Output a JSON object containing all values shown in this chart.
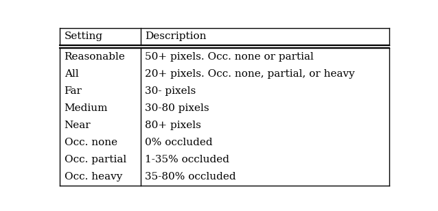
{
  "header": [
    "Setting",
    "Description"
  ],
  "rows": [
    [
      "Reasonable",
      "50+ pixels. Occ. none or partial"
    ],
    [
      "All",
      "20+ pixels. Occ. none, partial, or heavy"
    ],
    [
      "Far",
      "30- pixels"
    ],
    [
      "Medium",
      "30-80 pixels"
    ],
    [
      "Near",
      "80+ pixels"
    ],
    [
      "Occ. none",
      "0% occluded"
    ],
    [
      "Occ. partial",
      "1-35% occluded"
    ],
    [
      "Occ. heavy",
      "35-80% occluded"
    ]
  ],
  "col_split": 0.245,
  "bg_color": "#ffffff",
  "border_color": "#000000",
  "text_color": "#000000",
  "font_size": 11.0,
  "header_font_size": 11.0,
  "fig_width": 6.38,
  "fig_height": 3.08,
  "dpi": 100
}
